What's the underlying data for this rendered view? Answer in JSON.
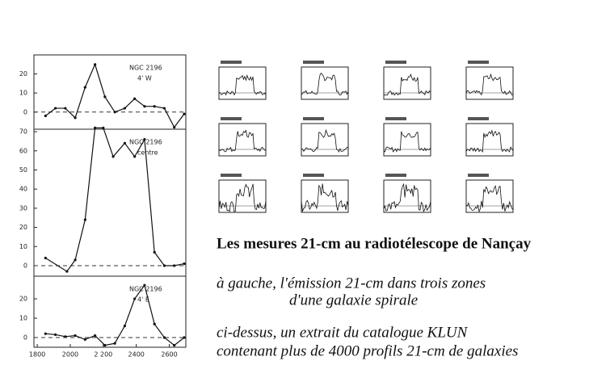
{
  "chart_data": [
    {
      "type": "line",
      "labels": [
        "NGC 2196",
        "4' W"
      ],
      "x": [
        1850,
        1910,
        1970,
        2030,
        2090,
        2150,
        2210,
        2270,
        2330,
        2390,
        2450,
        2510,
        2570,
        2630,
        2690
      ],
      "values": [
        -2,
        2,
        2,
        -3,
        13,
        25,
        8,
        0,
        2,
        7,
        3,
        3,
        2,
        -8,
        -1
      ],
      "xlim": [
        1780,
        2700
      ],
      "ylim": [
        -9,
        30
      ],
      "yticks": [
        0,
        10,
        20
      ],
      "hline": 0
    },
    {
      "type": "line",
      "labels": [
        "NGC 2196",
        "centre"
      ],
      "x": [
        1850,
        1980,
        2030,
        2090,
        2150,
        2200,
        2260,
        2330,
        2390,
        2450,
        2510,
        2570,
        2630,
        2690
      ],
      "values": [
        4,
        -3,
        3,
        24,
        72,
        72,
        57,
        64,
        57,
        66,
        7,
        0,
        0,
        1
      ],
      "xlim": [
        1780,
        2700
      ],
      "ylim": [
        -5.5,
        71.3
      ],
      "yticks": [
        0,
        10,
        20,
        30,
        40,
        50,
        60,
        70
      ],
      "hline": 0
    },
    {
      "type": "line",
      "labels": [
        "NGC 2196",
        "4' E"
      ],
      "x": [
        1850,
        1910,
        1970,
        2030,
        2090,
        2150,
        2210,
        2270,
        2330,
        2390,
        2450,
        2510,
        2570,
        2630,
        2690
      ],
      "values": [
        2,
        1.5,
        0.5,
        1,
        -1,
        1,
        -4,
        -3,
        6,
        20,
        27,
        7,
        0,
        -4,
        0
      ],
      "xlim": [
        1780,
        2700
      ],
      "ylim": [
        -5,
        31.7
      ],
      "yticks": [
        0,
        10,
        20
      ],
      "xticks": [
        1800,
        2000,
        {
          "value": 2200,
          "label": "2 200"
        },
        2400,
        2600
      ],
      "hline": 0
    }
  ],
  "captions": {
    "title": "Les mesures 21-cm au radiotélescope de Nançay",
    "left_1": "à gauche, l'émission 21-cm dans trois zones",
    "left_2": "d'une galaxie spirale",
    "above_1": "ci-dessus, un extrait du catalogue KLUN",
    "above_2": "contenant plus de 4000 profils 21-cm de galaxies"
  }
}
